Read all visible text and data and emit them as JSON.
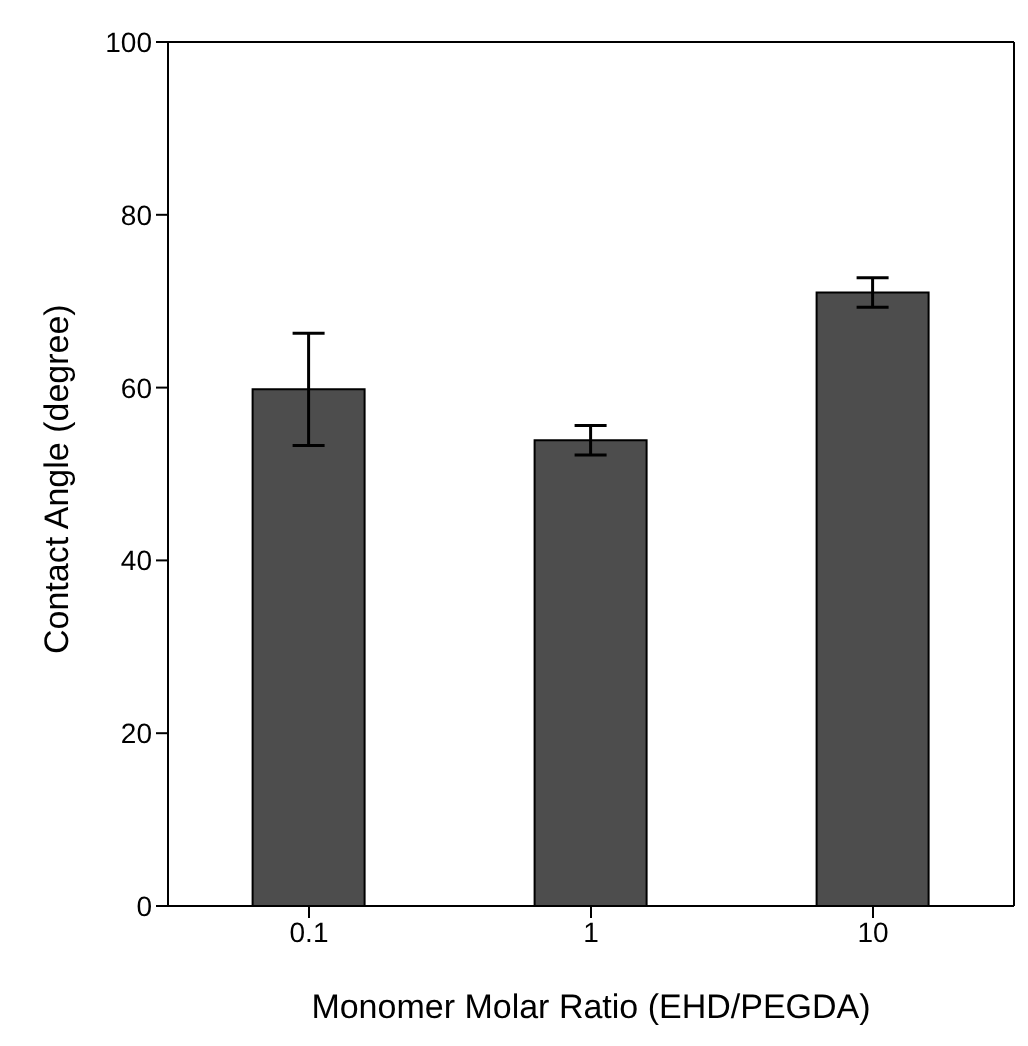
{
  "chart_data": {
    "type": "bar",
    "xlabel": "Monomer Molar Ratio  (EHD/PEGDA)",
    "ylabel": "Contact Angle (degree)",
    "categories": [
      "0.1",
      "1",
      "10"
    ],
    "values": [
      59.8,
      53.9,
      71.0
    ],
    "errors": [
      6.5,
      1.7,
      1.7
    ],
    "color": "#4d4d4d",
    "ylim": [
      0,
      100
    ],
    "yticks": [
      0,
      20,
      40,
      60,
      80,
      100
    ]
  }
}
